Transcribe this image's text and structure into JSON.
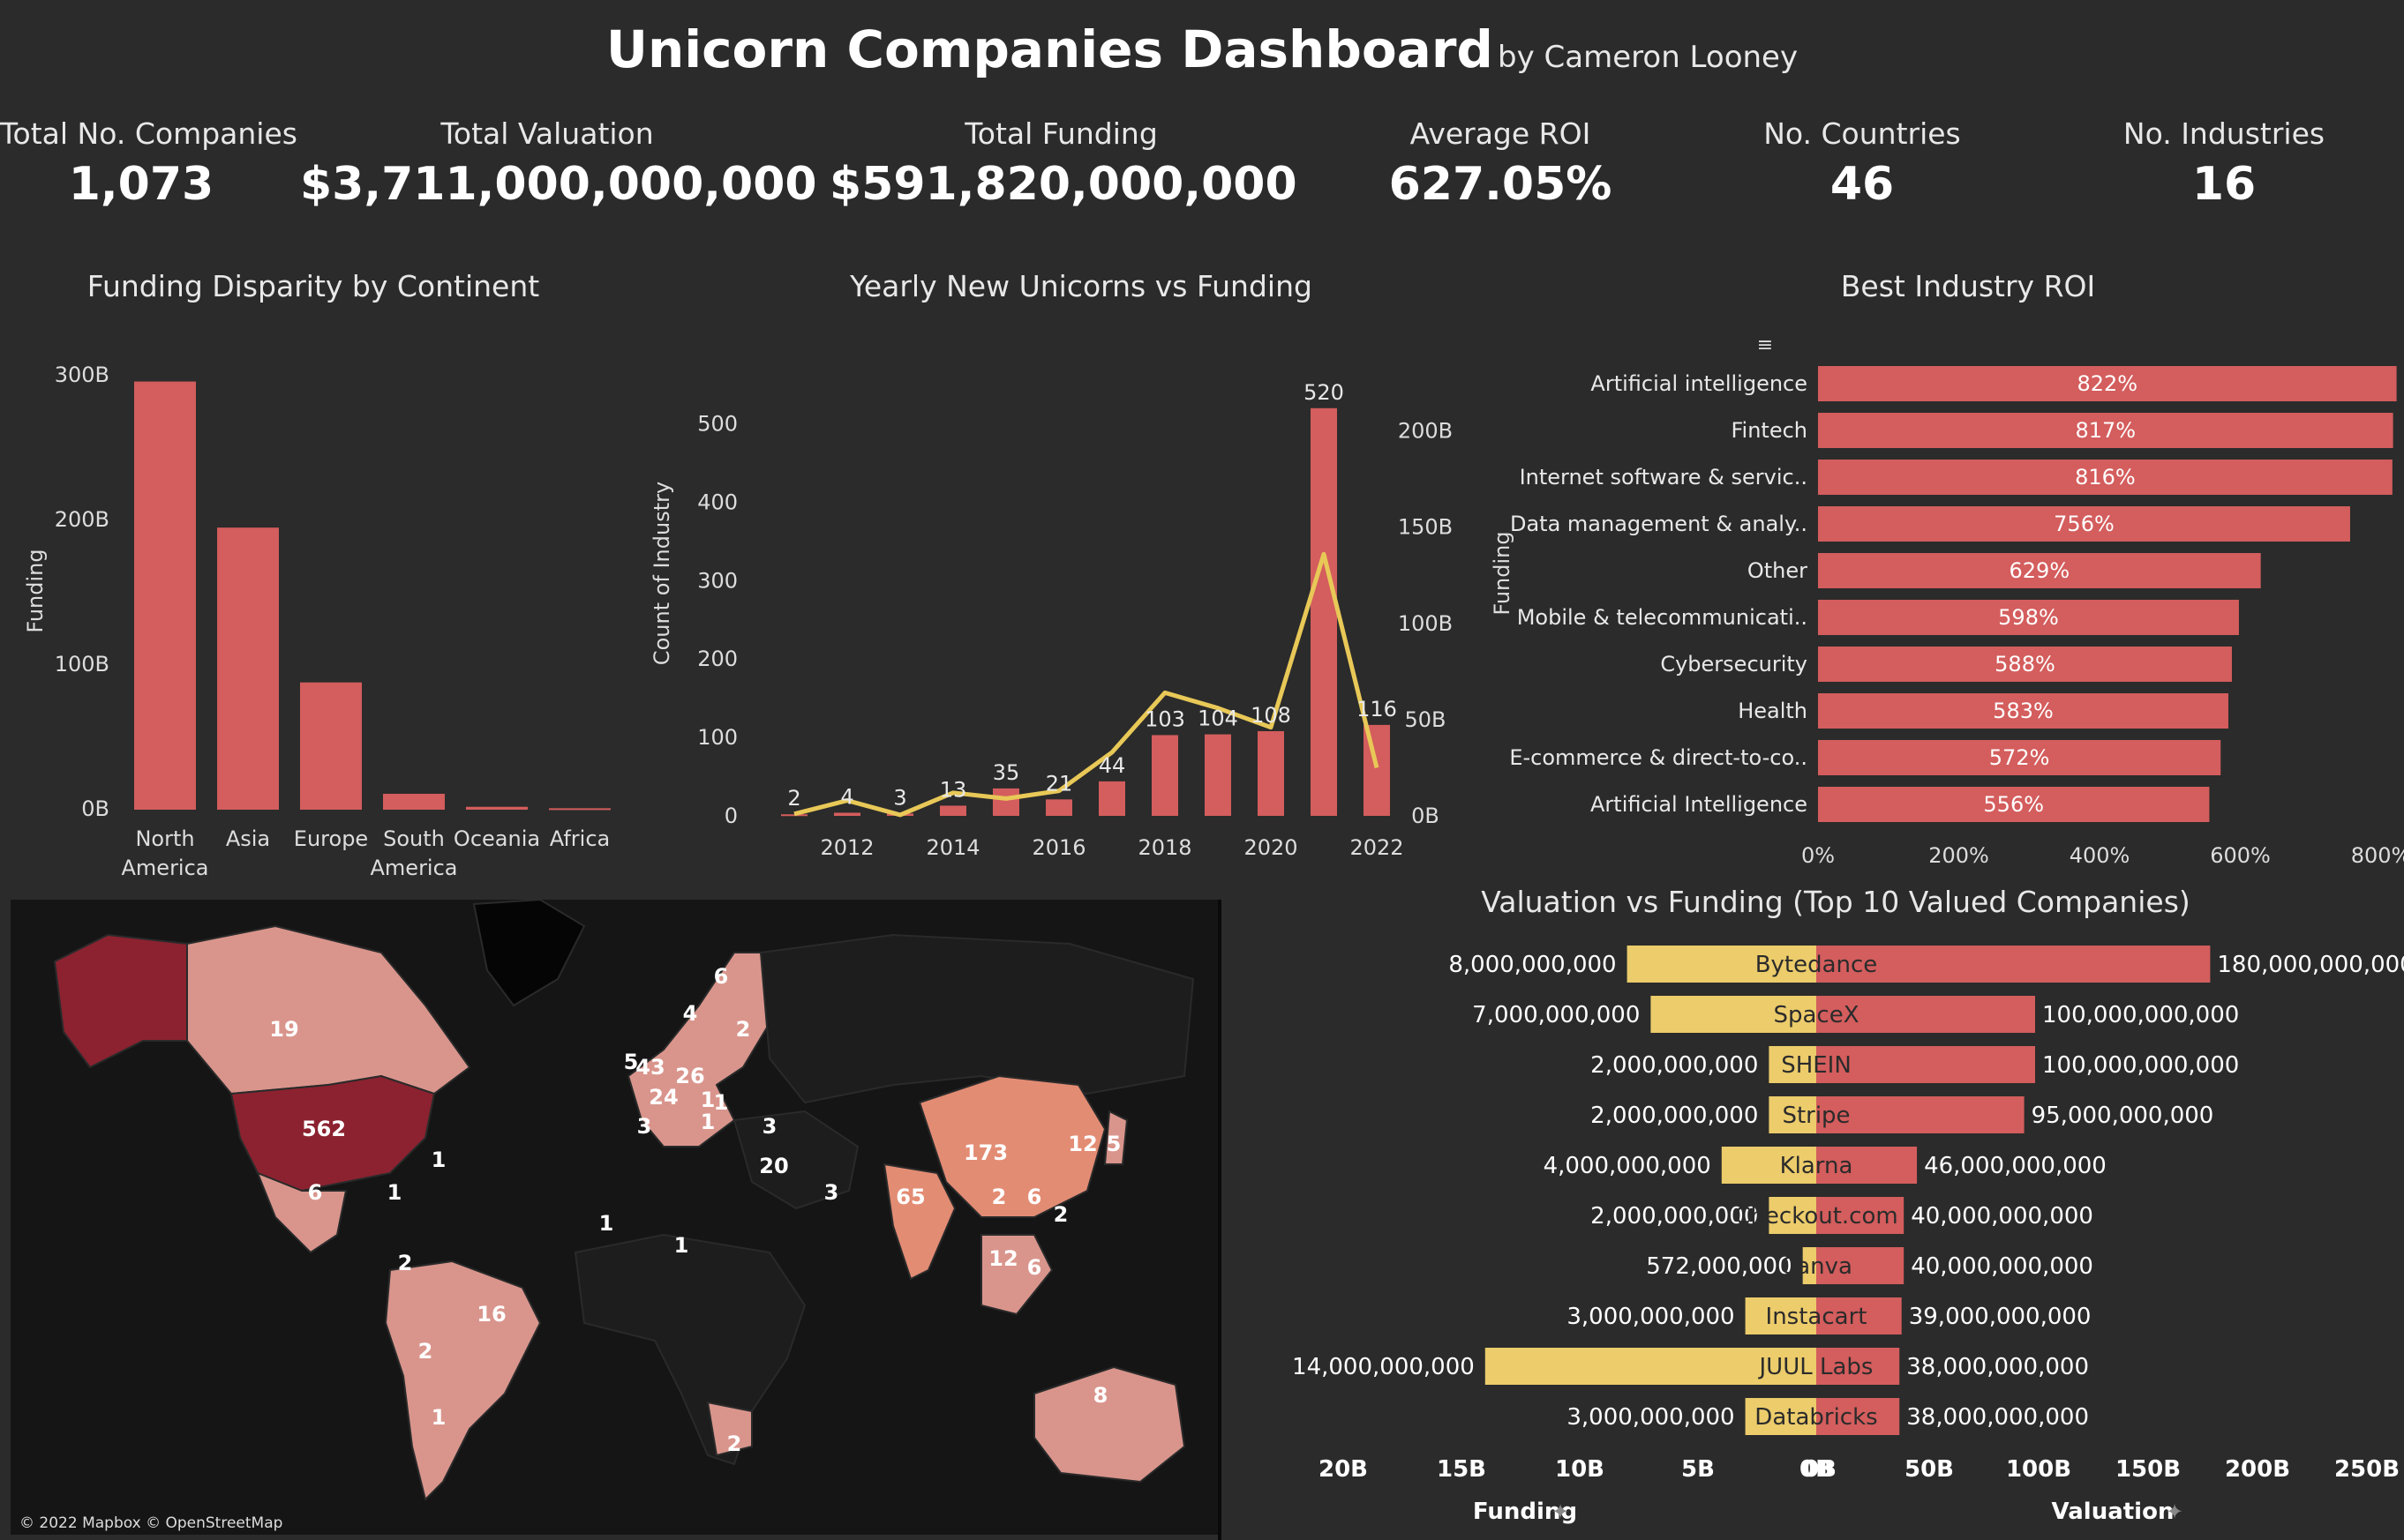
{
  "header": {
    "title": "Unicorn Companies Dashboard",
    "byline": "by Cameron Looney"
  },
  "kpis": [
    {
      "label": "Total No. Companies",
      "value": "1,073"
    },
    {
      "label": "Total Valuation",
      "value": "$3,711,000,000,000"
    },
    {
      "label": "Total Funding",
      "value": "$591,820,000,000"
    },
    {
      "label": "Average ROI",
      "value": "627.05%"
    },
    {
      "label": "No. Countries",
      "value": "46"
    },
    {
      "label": "No. Industries",
      "value": "16"
    }
  ],
  "colors": {
    "bar": "#d45d5d",
    "line": "#e8c857",
    "funding": "#eccc6b",
    "background": "#2b2b2b"
  },
  "map": {
    "credit": "© 2022 Mapbox © OpenStreetMap",
    "labels": [
      "19",
      "562",
      "1",
      "1",
      "6",
      "2",
      "16",
      "2",
      "1",
      "6",
      "4",
      "2",
      "5",
      "43",
      "26",
      "24",
      "1",
      "3",
      "1",
      "1",
      "3",
      "20",
      "3",
      "1",
      "1",
      "65",
      "173",
      "12",
      "5",
      "2",
      "6",
      "2",
      "12",
      "6",
      "2",
      "8"
    ]
  },
  "chart_data": [
    {
      "type": "bar",
      "title": "Funding Disparity by Continent",
      "ylabel": "Funding",
      "categories": [
        "North America",
        "Asia",
        "Europe",
        "South America",
        "Oceania",
        "Africa"
      ],
      "category_lines": [
        [
          "North",
          "America"
        ],
        [
          "Asia"
        ],
        [
          "Europe"
        ],
        [
          "South",
          "America"
        ],
        [
          "Oceania"
        ],
        [
          "Africa"
        ]
      ],
      "values": [
        296,
        195,
        88,
        11,
        2,
        1
      ],
      "unit": "B",
      "yticks": [
        "0B",
        "100B",
        "200B",
        "300B"
      ],
      "ylim": [
        0,
        300
      ]
    },
    {
      "type": "bar+line",
      "title": "Yearly New Unicorns vs Funding",
      "ylabel": "Count of Industry",
      "x": [
        2011,
        2012,
        2013,
        2014,
        2015,
        2016,
        2017,
        2018,
        2019,
        2020,
        2021,
        2022
      ],
      "xticks": [
        "2012",
        "2014",
        "2016",
        "2018",
        "2020",
        "2022"
      ],
      "bar_values": [
        2,
        4,
        3,
        13,
        35,
        21,
        44,
        103,
        104,
        108,
        520,
        116
      ],
      "bar_labels": [
        "2",
        "4",
        "3",
        "13",
        "35",
        "21",
        "44",
        "103",
        "104",
        "108",
        "520",
        "116"
      ],
      "bar_ylim": [
        0,
        540
      ],
      "bar_yticks": [
        "0",
        "100",
        "200",
        "300",
        "400",
        "500"
      ],
      "line_name": "Funding",
      "line_values": [
        1,
        8,
        0.5,
        12,
        9,
        13,
        33,
        64,
        56,
        46,
        136,
        25
      ],
      "line_unit": "B",
      "line_ylim": [
        0,
        220
      ],
      "line_yticks": [
        "0B",
        "50B",
        "100B",
        "150B",
        "200B"
      ]
    },
    {
      "type": "bar",
      "orientation": "horizontal",
      "title": "Best Industry ROI",
      "categories": [
        "Artificial intelligence",
        "Fintech",
        "Internet software & servic..",
        "Data management & analy..",
        "Other",
        "Mobile & telecommunicati..",
        "Cybersecurity",
        "Health",
        "E-commerce & direct-to-co..",
        "Artificial Intelligence"
      ],
      "values": [
        822,
        817,
        816,
        756,
        629,
        598,
        588,
        583,
        572,
        556
      ],
      "labels": [
        "822%",
        "817%",
        "816%",
        "756%",
        "629%",
        "598%",
        "588%",
        "583%",
        "572%",
        "556%"
      ],
      "xticks": [
        "0%",
        "200%",
        "400%",
        "600%",
        "800%"
      ],
      "xlim": [
        0,
        820
      ]
    },
    {
      "type": "bar",
      "orientation": "diverging",
      "title": "Valuation vs Funding (Top 10 Valued Companies)",
      "categories": [
        "Bytedance",
        "SpaceX",
        "SHEIN",
        "Stripe",
        "Klarna",
        "Checkout.com",
        "Canva",
        "Instacart",
        "JUUL Labs",
        "Databricks"
      ],
      "series": [
        {
          "name": "Funding",
          "values": [
            8000000000,
            7000000000,
            2000000000,
            2000000000,
            4000000000,
            2000000000,
            572000000,
            3000000000,
            14000000000,
            3000000000
          ],
          "labels": [
            "8,000,000,000",
            "7,000,000,000",
            "2,000,000,000",
            "2,000,000,000",
            "4,000,000,000",
            "2,000,000,000",
            "572,000,000",
            "3,000,000,000",
            "14,000,000,000",
            "3,000,000,000"
          ]
        },
        {
          "name": "Valuation",
          "values": [
            180000000000,
            100000000000,
            100000000000,
            95000000000,
            46000000000,
            40000000000,
            40000000000,
            39000000000,
            38000000000,
            38000000000
          ],
          "labels": [
            "180,000,000,000",
            "100,000,000,000",
            "100,000,000,000",
            "95,000,000,000",
            "46,000,000,000",
            "40,000,000,000",
            "40,000,000,000",
            "39,000,000,000",
            "38,000,000,000",
            "38,000,000,000"
          ]
        }
      ],
      "funding_axis": {
        "label": "Funding",
        "ticks": [
          "20B",
          "15B",
          "10B",
          "5B",
          "0B"
        ],
        "max": 20
      },
      "valuation_axis": {
        "label": "Valuation",
        "ticks": [
          "0B",
          "50B",
          "100B",
          "150B",
          "200B",
          "250B"
        ],
        "max": 250
      }
    }
  ]
}
